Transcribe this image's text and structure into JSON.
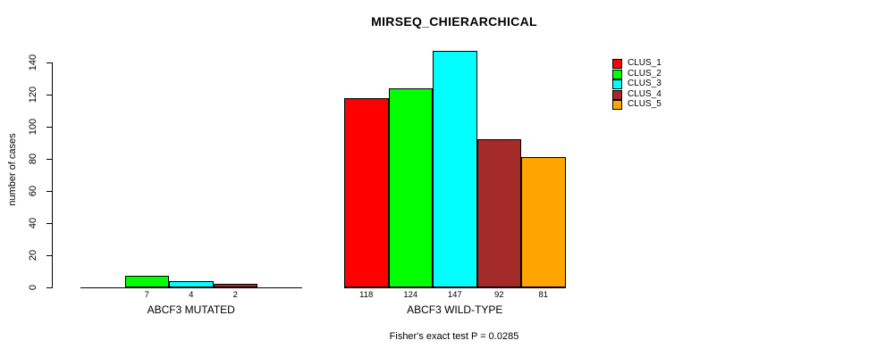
{
  "page": {
    "background_color": "#ffffff",
    "text_color": "#000000"
  },
  "chart_data": {
    "type": "bar",
    "title": "MIRSEQ_CHIERARCHICAL",
    "ylabel": "number of cases",
    "xlabel": "",
    "ylim": [
      0,
      140
    ],
    "yticks": [
      0,
      20,
      40,
      60,
      80,
      100,
      120,
      140
    ],
    "grid": false,
    "bar_border_color": "#000000",
    "categories": [
      "ABCF3 MUTATED",
      "ABCF3 WILD-TYPE"
    ],
    "series": [
      {
        "name": "CLUS_1",
        "color": "#FF0000",
        "values": [
          0,
          118
        ]
      },
      {
        "name": "CLUS_2",
        "color": "#00FF00",
        "values": [
          7,
          124
        ]
      },
      {
        "name": "CLUS_3",
        "color": "#00FFFF",
        "values": [
          4,
          147
        ]
      },
      {
        "name": "CLUS_4",
        "color": "#A52A2A",
        "values": [
          2,
          92
        ]
      },
      {
        "name": "CLUS_5",
        "color": "#FFA500",
        "values": [
          0,
          81
        ]
      }
    ],
    "bar_value_labels": {
      "ABCF3 MUTATED": [
        null,
        7,
        4,
        2,
        null
      ],
      "ABCF3 WILD-TYPE": [
        118,
        124,
        147,
        92,
        81
      ]
    },
    "legend": {
      "position": "right",
      "entries": [
        {
          "label": "CLUS_1",
          "color": "#FF0000"
        },
        {
          "label": "CLUS_2",
          "color": "#00FF00"
        },
        {
          "label": "CLUS_3",
          "color": "#00FFFF"
        },
        {
          "label": "CLUS_4",
          "color": "#A52A2A"
        },
        {
          "label": "CLUS_5",
          "color": "#FFA500"
        }
      ]
    },
    "footnote": "Fisher's exact test P = 0.0285"
  }
}
